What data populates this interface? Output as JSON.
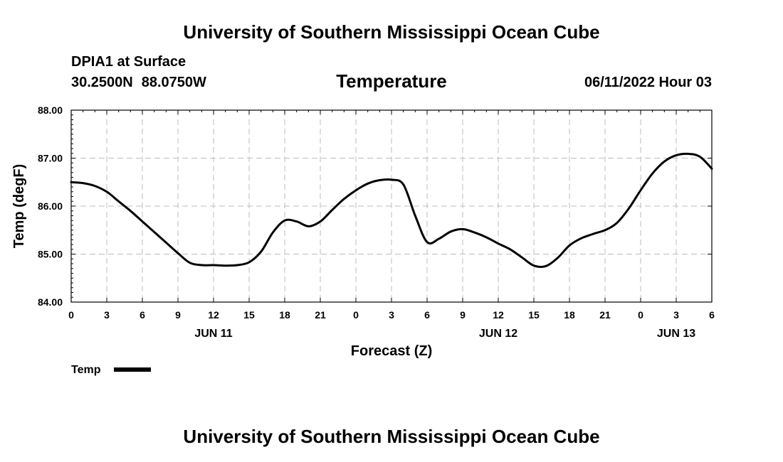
{
  "header": {
    "title": "University of Southern Mississippi Ocean Cube",
    "station": "DPIA1 at Surface",
    "lat": "30.2500N",
    "lon": "88.0750W",
    "variable": "Temperature",
    "datestamp": "06/11/2022 Hour 03"
  },
  "footer": {
    "title": "University of Southern Mississippi Ocean Cube"
  },
  "chart_data": {
    "type": "line",
    "title": "Temperature",
    "xlabel": "Forecast (Z)",
    "ylabel": "Temp (degF)",
    "ylim": [
      84.0,
      88.0
    ],
    "xlim": [
      0,
      54
    ],
    "grid": true,
    "x_unit": "hours since 06/11 00Z",
    "ytick_values": [
      84.0,
      85.0,
      86.0,
      87.0,
      88.0
    ],
    "ytick_labels": [
      "84.00",
      "85.00",
      "86.00",
      "87.00",
      "88.00"
    ],
    "xtick_values": [
      0,
      3,
      6,
      9,
      12,
      15,
      18,
      21,
      24,
      27,
      30,
      33,
      36,
      39,
      42,
      45,
      48,
      51,
      54
    ],
    "xtick_labels": [
      "0",
      "3",
      "6",
      "9",
      "12",
      "15",
      "18",
      "21",
      "0",
      "3",
      "6",
      "9",
      "12",
      "15",
      "18",
      "21",
      "0",
      "3",
      "6"
    ],
    "day_labels": [
      {
        "x": 12,
        "label": "JUN 11"
      },
      {
        "x": 36,
        "label": "JUN 12"
      },
      {
        "x": 51,
        "label": "JUN 13"
      }
    ],
    "legend": {
      "label": "Temp",
      "position": "bottom-left"
    },
    "series": [
      {
        "name": "Temp",
        "color": "#000000",
        "x": [
          0,
          1,
          2,
          3,
          4,
          5,
          6,
          7,
          8,
          9,
          10,
          11,
          12,
          13,
          14,
          15,
          16,
          17,
          18,
          19,
          20,
          21,
          22,
          23,
          24,
          25,
          26,
          27,
          28,
          29,
          30,
          31,
          32,
          33,
          34,
          35,
          36,
          37,
          38,
          39,
          40,
          41,
          42,
          43,
          44,
          45,
          46,
          47,
          48,
          49,
          50,
          51,
          52,
          53,
          54
        ],
        "values": [
          86.5,
          86.48,
          86.42,
          86.3,
          86.1,
          85.9,
          85.68,
          85.46,
          85.24,
          85.02,
          84.82,
          84.77,
          84.77,
          84.76,
          84.77,
          84.83,
          85.05,
          85.45,
          85.7,
          85.68,
          85.58,
          85.68,
          85.92,
          86.15,
          86.33,
          86.47,
          86.54,
          86.55,
          86.45,
          85.8,
          85.25,
          85.32,
          85.47,
          85.52,
          85.45,
          85.35,
          85.22,
          85.1,
          84.93,
          84.76,
          84.75,
          84.92,
          85.18,
          85.33,
          85.42,
          85.5,
          85.65,
          85.95,
          86.33,
          86.68,
          86.93,
          87.06,
          87.09,
          87.03,
          86.78
        ]
      }
    ]
  }
}
